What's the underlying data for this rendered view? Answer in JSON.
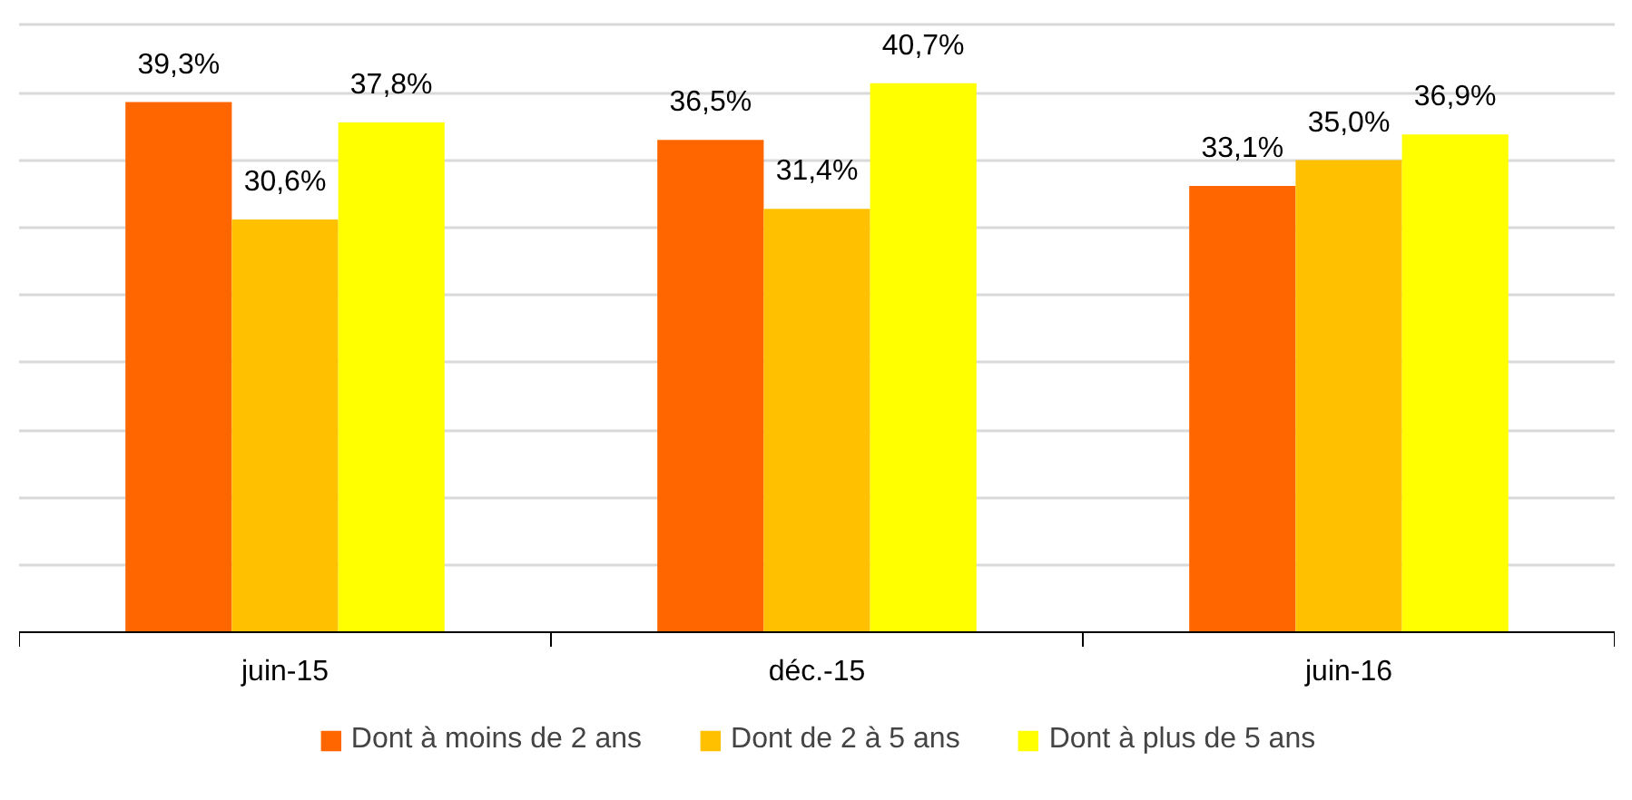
{
  "chart_data": {
    "type": "bar",
    "categories": [
      "juin-15",
      "déc.-15",
      "juin-16"
    ],
    "series": [
      {
        "name": "Dont à moins de 2 ans",
        "color": "#ff6600",
        "values": [
          39.3,
          36.5,
          33.1
        ],
        "value_labels": [
          "39,3%",
          "36,5%",
          "33,1%"
        ]
      },
      {
        "name": "Dont de 2 à 5 ans",
        "color": "#ffc000",
        "values": [
          30.6,
          31.4,
          35.0
        ],
        "value_labels": [
          "30,6%",
          "31,4%",
          "35,0%"
        ]
      },
      {
        "name": "Dont à plus de 5 ans",
        "color": "#ffff00",
        "values": [
          37.8,
          40.7,
          36.9
        ],
        "value_labels": [
          "37,8%",
          "40,7%",
          "36,9%"
        ]
      }
    ],
    "ylim": [
      0,
      45
    ],
    "yticks": [
      {
        "value": 5,
        "label": null
      },
      {
        "value": 10,
        "label": null
      },
      {
        "value": 15,
        "label": null
      },
      {
        "value": 20,
        "label": null
      },
      {
        "value": 25,
        "label": null
      },
      {
        "value": 30,
        "label": null
      },
      {
        "value": 35,
        "label": null
      },
      {
        "value": 40,
        "label": null
      },
      {
        "value": 45,
        "label": null
      }
    ],
    "grid": "y",
    "legend": "bottom",
    "tick_labels": "x"
  }
}
